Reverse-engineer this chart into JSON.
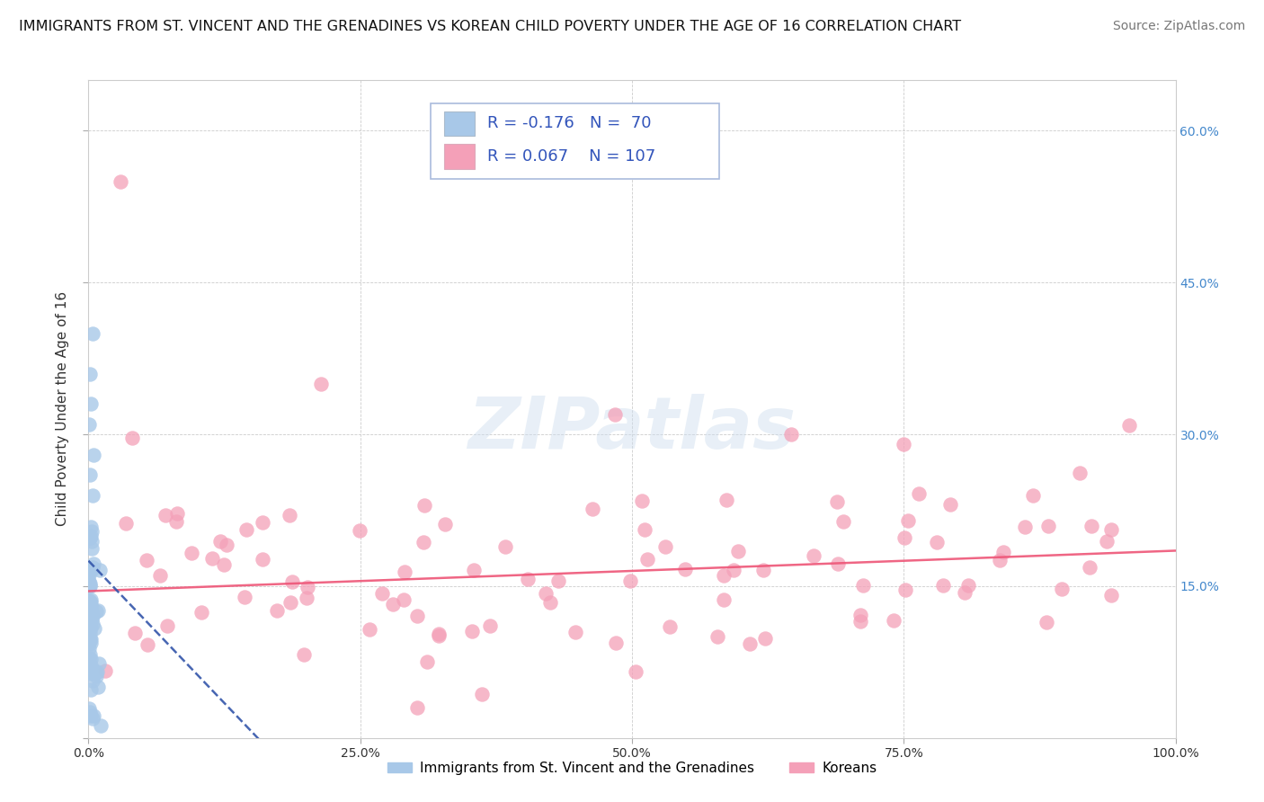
{
  "title": "IMMIGRANTS FROM ST. VINCENT AND THE GRENADINES VS KOREAN CHILD POVERTY UNDER THE AGE OF 16 CORRELATION CHART",
  "source": "Source: ZipAtlas.com",
  "ylabel": "Child Poverty Under the Age of 16",
  "xlim": [
    0,
    1.0
  ],
  "ylim": [
    0,
    0.65
  ],
  "xtick_vals": [
    0.0,
    0.25,
    0.5,
    0.75,
    1.0
  ],
  "xticklabels": [
    "0.0%",
    "25.0%",
    "50.0%",
    "75.0%",
    "100.0%"
  ],
  "ytick_vals": [
    0.0,
    0.15,
    0.3,
    0.45,
    0.6
  ],
  "ytick_right_vals": [
    0.15,
    0.3,
    0.45,
    0.6
  ],
  "yticklabels_right": [
    "15.0%",
    "30.0%",
    "45.0%",
    "60.0%"
  ],
  "legend_label1": "Immigrants from St. Vincent and the Grenadines",
  "legend_label2": "Koreans",
  "color_blue": "#a8c8e8",
  "color_pink": "#f4a0b8",
  "line_blue_color": "#3355aa",
  "line_pink_color": "#ee5577",
  "right_tick_color": "#4488cc",
  "watermark": "ZIPatlas",
  "title_fontsize": 11.5,
  "source_fontsize": 10,
  "legend_text_color": "#3355bb",
  "legend_border_color": "#aabbdd"
}
